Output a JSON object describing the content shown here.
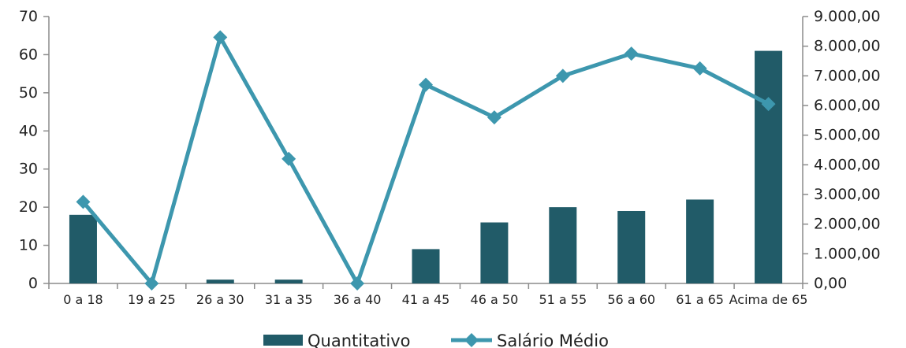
{
  "chart_data": {
    "type": "bar+line",
    "categories": [
      "0 a 18",
      "19 a 25",
      "26 a 30",
      "31 a 35",
      "36 a 40",
      "41 a 45",
      "46 a 50",
      "51 a 55",
      "56 a 60",
      "61 a 65",
      "Acima de 65"
    ],
    "series": [
      {
        "name": "Quantitativo",
        "type": "bar",
        "axis": "left",
        "color": "#215b68",
        "values": [
          18,
          0,
          1,
          1,
          0,
          9,
          16,
          20,
          19,
          22,
          61
        ]
      },
      {
        "name": "Salário Médio",
        "type": "line",
        "axis": "right",
        "color": "#3d97ae",
        "marker": "diamond",
        "values": [
          2750,
          0,
          8300,
          4200,
          0,
          6700,
          5600,
          7000,
          7750,
          7250,
          6050
        ]
      }
    ],
    "y_left": {
      "ylim": [
        0,
        70
      ],
      "ticks": [
        0,
        10,
        20,
        30,
        40,
        50,
        60,
        70
      ],
      "tick_labels": [
        "0",
        "10",
        "20",
        "30",
        "40",
        "50",
        "60",
        "70"
      ]
    },
    "y_right": {
      "ylim": [
        0,
        9000
      ],
      "ticks": [
        0,
        1000,
        2000,
        3000,
        4000,
        5000,
        6000,
        7000,
        8000,
        9000
      ],
      "tick_labels": [
        "0,00",
        "1.000,00",
        "2.000,00",
        "3.000,00",
        "4.000,00",
        "5.000,00",
        "6.000,00",
        "7.000,00",
        "8.000,00",
        "9.000,00"
      ]
    },
    "legend": {
      "position": "bottom",
      "entries": [
        "Quantitativo",
        "Salário Médio"
      ]
    },
    "grid": false
  }
}
